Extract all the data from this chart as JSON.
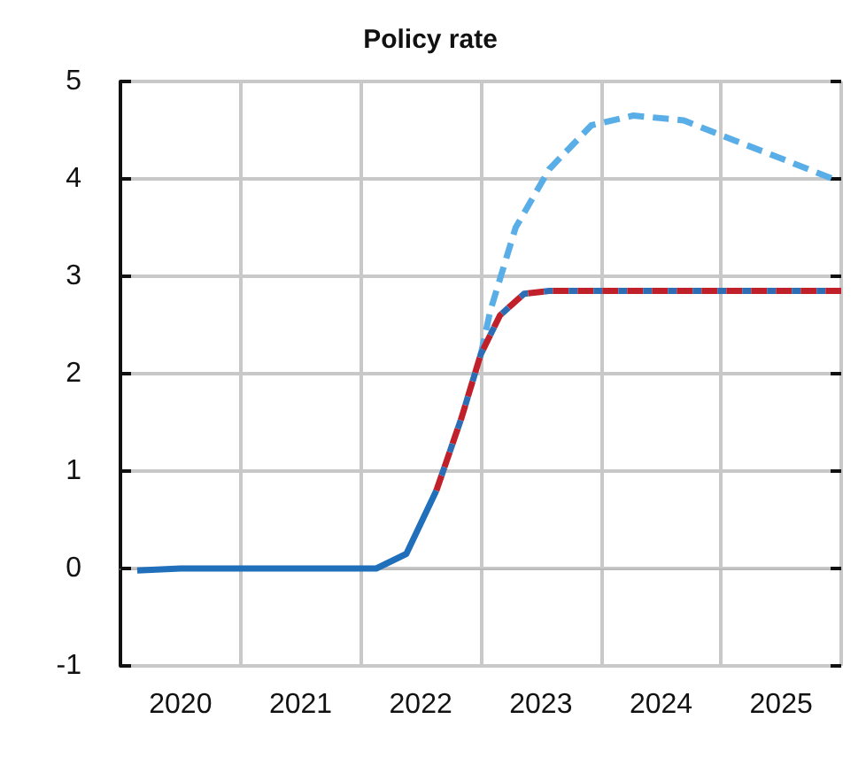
{
  "chart_data": {
    "type": "line",
    "title": "Policy rate",
    "xlim": [
      2020,
      2026
    ],
    "xticks": [
      {
        "value": 2020,
        "label": null
      },
      {
        "value": 2020.5,
        "label": "2020"
      },
      {
        "value": 2021,
        "label": null
      },
      {
        "value": 2021.5,
        "label": "2021"
      },
      {
        "value": 2022,
        "label": null
      },
      {
        "value": 2022.5,
        "label": "2022"
      },
      {
        "value": 2023,
        "label": null
      },
      {
        "value": 2023.5,
        "label": "2023"
      },
      {
        "value": 2024,
        "label": null
      },
      {
        "value": 2024.5,
        "label": "2024"
      },
      {
        "value": 2025,
        "label": null
      },
      {
        "value": 2025.5,
        "label": "2025"
      },
      {
        "value": 2026,
        "label": null
      }
    ],
    "ylim": [
      -1,
      5
    ],
    "yticks": [
      -1,
      0,
      1,
      2,
      3,
      4,
      5
    ],
    "grid": true,
    "marker": "none",
    "series": [
      {
        "color": "#5aaee8",
        "line_style": "dashed",
        "x": [
          2023.0,
          2023.08,
          2023.29,
          2023.57,
          2023.92,
          2024.27,
          2024.69,
          2025.1,
          2025.52,
          2025.93
        ],
        "values": [
          2.2,
          2.65,
          3.5,
          4.1,
          4.55,
          4.65,
          4.6,
          4.4,
          4.2,
          4.0
        ]
      },
      {
        "color": "#c0202a",
        "line_style": "dashed",
        "x": [
          2022.63,
          2022.84,
          2023.0,
          2023.16,
          2023.36,
          2023.57,
          2024.5,
          2026.0
        ],
        "values": [
          0.8,
          1.55,
          2.2,
          2.6,
          2.82,
          2.85,
          2.85,
          2.85
        ]
      },
      {
        "color": "#2e6db4",
        "line_style": "dotted",
        "x": [
          2022.63,
          2022.84,
          2023.0,
          2023.16,
          2023.36,
          2023.57,
          2024.5,
          2026.0
        ],
        "values": [
          0.8,
          1.55,
          2.2,
          2.6,
          2.82,
          2.85,
          2.85,
          2.85
        ]
      },
      {
        "color": "#1f6fba",
        "line_style": "solid",
        "x": [
          2020.14,
          2020.5,
          2021.0,
          2021.5,
          2022.13,
          2022.38,
          2022.63
        ],
        "values": [
          -0.02,
          0,
          0,
          0,
          0,
          0.15,
          0.8
        ]
      }
    ]
  }
}
